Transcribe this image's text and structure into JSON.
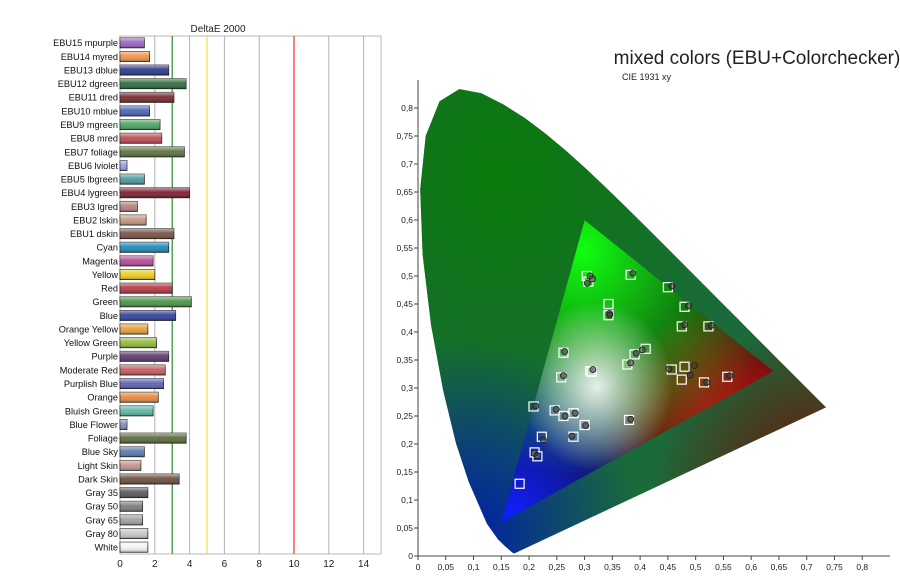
{
  "chart_data": [
    {
      "type": "bar",
      "orientation": "horizontal",
      "title": "DeltaE 2000",
      "xlim": [
        0,
        15
      ],
      "xticks": [
        0,
        2,
        4,
        6,
        8,
        10,
        12,
        14
      ],
      "reference_lines": [
        {
          "value": 3,
          "color": "#2e8b2e"
        },
        {
          "value": 5,
          "color": "#f0e040"
        },
        {
          "value": 10,
          "color": "#ff3030"
        }
      ],
      "grid": true,
      "categories": [
        "EBU15 mpurple",
        "EBU14 myred",
        "EBU13 dblue",
        "EBU12 dgreen",
        "EBU11 dred",
        "EBU10 mblue",
        "EBU9 mgreen",
        "EBU8 mred",
        "EBU7 foliage",
        "EBU6 lviolet",
        "EBU5 lbgreen",
        "EBU4 lygreen",
        "EBU3 lgred",
        "EBU2 lskin",
        "EBU1 dskin",
        "Cyan",
        "Magenta",
        "Yellow",
        "Red",
        "Green",
        "Blue",
        "Orange Yellow",
        "Yellow Green",
        "Purple",
        "Moderate Red",
        "Purplish Blue",
        "Orange",
        "Bluish Green",
        "Blue Flower",
        "Foliage",
        "Blue Sky",
        "Light Skin",
        "Dark Skin",
        "Gray 35",
        "Gray 50",
        "Gray 65",
        "Gray 80",
        "White"
      ],
      "values": [
        1.4,
        1.7,
        2.8,
        3.8,
        3.1,
        1.7,
        2.3,
        2.4,
        3.7,
        0.4,
        1.4,
        4.0,
        1.0,
        1.5,
        3.1,
        2.8,
        1.9,
        2.0,
        3.0,
        4.1,
        3.2,
        1.6,
        2.1,
        2.8,
        2.6,
        2.5,
        2.2,
        1.9,
        0.4,
        3.8,
        1.4,
        1.2,
        3.4,
        1.6,
        1.3,
        1.3,
        1.6,
        1.6
      ],
      "bar_colors": [
        "#9a66c6",
        "#f0944c",
        "#2c3c8c",
        "#2e6e3c",
        "#7a2a32",
        "#4c64ba",
        "#4ea464",
        "#bc4e56",
        "#5c7440",
        "#9c9cf0",
        "#4c9ca4",
        "#7c2234",
        "#b4867e",
        "#c49884",
        "#7c5448",
        "#1c8cbc",
        "#b64c98",
        "#ecce24",
        "#b63a46",
        "#4c9448",
        "#34449c",
        "#e8a038",
        "#94ba3e",
        "#5e3c70",
        "#c45c62",
        "#5c64b4",
        "#e88a3c",
        "#5cb8a4",
        "#8c8cbc",
        "#5c6c40",
        "#5c7cac",
        "#c4968c",
        "#6e5040",
        "#5a5a5a",
        "#7e7e7e",
        "#a2a2a2",
        "#c8c8c8",
        "#f4f4f4"
      ]
    },
    {
      "type": "scatter",
      "title": "mixed colors (EBU+Colorchecker)",
      "subtitle": "CIE 1931 xy",
      "xlim": [
        0,
        0.85
      ],
      "ylim": [
        0,
        0.85
      ],
      "xticks": [
        0,
        0.05,
        0.1,
        0.15,
        0.2,
        0.25,
        0.3,
        0.35,
        0.4,
        0.45,
        0.5,
        0.55,
        0.6,
        0.65,
        0.7,
        0.75,
        0.8
      ],
      "yticks": [
        0,
        0.05,
        0.1,
        0.15,
        0.2,
        0.25,
        0.3,
        0.35,
        0.4,
        0.45,
        0.5,
        0.55,
        0.6,
        0.65,
        0.7,
        0.75,
        0.8
      ],
      "xtick_labels": [
        "0",
        "0,05",
        "0,1",
        "0,15",
        "0,2",
        "0,25",
        "0,3",
        "0,35",
        "0,4",
        "0,45",
        "0,5",
        "0,55",
        "0,6",
        "0,65",
        "0,7",
        "0,75",
        "0,8"
      ],
      "ytick_labels": [
        "0",
        "0,05",
        "0,1",
        "0,15",
        "0,2",
        "0,25",
        "0,3",
        "0,35",
        "0,4",
        "0,45",
        "0,5",
        "0,55",
        "0,6",
        "0,65",
        "0,7",
        "0,75",
        "0,8"
      ],
      "gamut_triangle": [
        [
          0.64,
          0.33
        ],
        [
          0.3,
          0.6
        ],
        [
          0.15,
          0.06
        ]
      ],
      "targets": [
        [
          0.313,
          0.329
        ],
        [
          0.31,
          0.33
        ],
        [
          0.262,
          0.363
        ],
        [
          0.258,
          0.319
        ],
        [
          0.304,
          0.5
        ],
        [
          0.307,
          0.49
        ],
        [
          0.383,
          0.502
        ],
        [
          0.343,
          0.45
        ],
        [
          0.343,
          0.43
        ],
        [
          0.45,
          0.48
        ],
        [
          0.48,
          0.445
        ],
        [
          0.475,
          0.41
        ],
        [
          0.523,
          0.41
        ],
        [
          0.377,
          0.342
        ],
        [
          0.39,
          0.36
        ],
        [
          0.41,
          0.37
        ],
        [
          0.457,
          0.333
        ],
        [
          0.48,
          0.338
        ],
        [
          0.475,
          0.315
        ],
        [
          0.515,
          0.31
        ],
        [
          0.557,
          0.32
        ],
        [
          0.208,
          0.267
        ],
        [
          0.246,
          0.26
        ],
        [
          0.262,
          0.25
        ],
        [
          0.28,
          0.255
        ],
        [
          0.223,
          0.213
        ],
        [
          0.28,
          0.213
        ],
        [
          0.3,
          0.234
        ],
        [
          0.38,
          0.243
        ],
        [
          0.21,
          0.185
        ],
        [
          0.215,
          0.178
        ],
        [
          0.183,
          0.129
        ]
      ],
      "measured": [
        [
          0.315,
          0.333
        ],
        [
          0.31,
          0.5
        ],
        [
          0.314,
          0.495
        ],
        [
          0.305,
          0.487
        ],
        [
          0.387,
          0.505
        ],
        [
          0.345,
          0.433
        ],
        [
          0.345,
          0.43
        ],
        [
          0.457,
          0.482
        ],
        [
          0.487,
          0.447
        ],
        [
          0.48,
          0.413
        ],
        [
          0.528,
          0.412
        ],
        [
          0.383,
          0.345
        ],
        [
          0.393,
          0.362
        ],
        [
          0.404,
          0.368
        ],
        [
          0.452,
          0.334
        ],
        [
          0.498,
          0.34
        ],
        [
          0.49,
          0.323
        ],
        [
          0.52,
          0.31
        ],
        [
          0.561,
          0.322
        ],
        [
          0.264,
          0.365
        ],
        [
          0.262,
          0.322
        ],
        [
          0.212,
          0.268
        ],
        [
          0.249,
          0.262
        ],
        [
          0.265,
          0.25
        ],
        [
          0.283,
          0.255
        ],
        [
          0.226,
          0.207
        ],
        [
          0.277,
          0.214
        ],
        [
          0.302,
          0.233
        ],
        [
          0.383,
          0.244
        ],
        [
          0.21,
          0.183
        ],
        [
          0.214,
          0.18
        ]
      ]
    }
  ]
}
